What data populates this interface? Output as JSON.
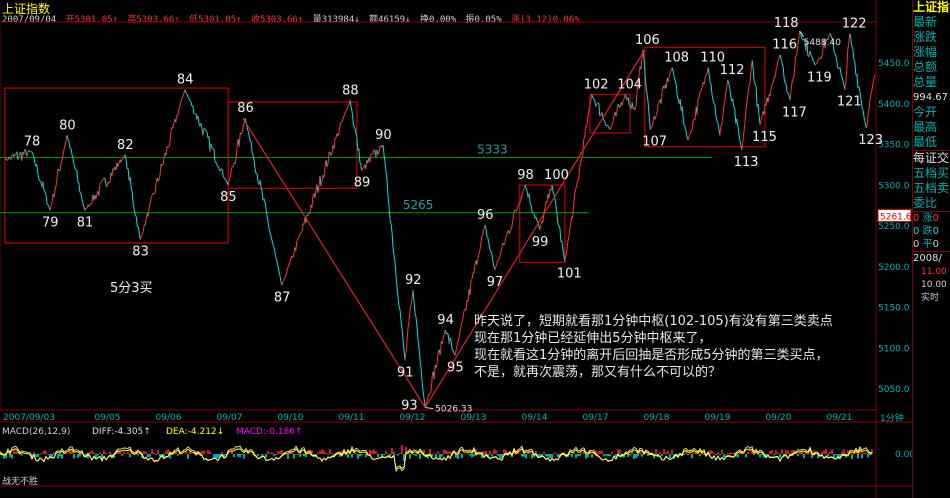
{
  "header": {
    "title": "上证指数",
    "date": "2007/09/04",
    "open": "开5301.05↑",
    "high": "高5303.66↑",
    "low": "低5301.05↑",
    "close": "收5303.66↑",
    "volume": "量313984↓",
    "amount": "额46159↓",
    "turnover": "换0.00%",
    "amplitude": "振0.05%",
    "change": "涨(3.12)0.06%"
  },
  "side_panel": {
    "title": "上证指",
    "labels": [
      "最新",
      "涨跌",
      "涨幅",
      "总额",
      "总量"
    ],
    "total_volume": "994.67",
    "labels2": [
      "今开",
      "最高",
      "最低"
    ],
    "exchange": "每证交",
    "labels3": [
      "五档买",
      "五档卖",
      "委比"
    ],
    "stats": [
      [
        "0",
        "涨",
        "0"
      ],
      [
        "0",
        "跌",
        "0"
      ],
      [
        "0",
        "平",
        "0"
      ]
    ],
    "date": "2008/",
    "v1": "11.00",
    "v2": "10.00",
    "realtime": "实时"
  },
  "period": "1分钟",
  "macd": {
    "label": "MACD(26,12,9)",
    "diff": "DIFF:-4.305↑",
    "dea": "DEA:-4.212↓",
    "macd": "MACD:-0.186↑",
    "zero": "0.00"
  },
  "footer": "战无不胜",
  "annotation": [
    "昨天说了，短期就看那1分钟中枢(102-105)有没有第三类卖点",
    "现在那1分钟已经延伸出5分钟中枢来了，",
    "现在就看这1分钟的离开后回抽是否形成5分钟的第三类买点，",
    "不是，就再次震荡，那又有什么不可以的？"
  ],
  "chart_data": {
    "type": "line",
    "title": "上证指数",
    "ylim": [
      5020,
      5495
    ],
    "y_ticks": [
      "5050.0",
      "5100.0",
      "5150.0",
      "5200.0",
      "5250.0",
      "5300.0",
      "5350.0",
      "5400.0",
      "5450.0"
    ],
    "x_ticks": [
      {
        "t": 0.05,
        "label": "2007/09/03"
      },
      {
        "t": 1.55,
        "label": "09/05"
      },
      {
        "t": 2.55,
        "label": "09/06"
      },
      {
        "t": 3.55,
        "label": "09/07"
      },
      {
        "t": 4.55,
        "label": "09/10"
      },
      {
        "t": 5.55,
        "label": "09/11"
      },
      {
        "t": 6.55,
        "label": "09/12"
      },
      {
        "t": 7.55,
        "label": "09/13"
      },
      {
        "t": 8.55,
        "label": "09/14"
      },
      {
        "t": 9.55,
        "label": "09/17"
      },
      {
        "t": 10.55,
        "label": "09/18"
      },
      {
        "t": 11.55,
        "label": "09/19"
      },
      {
        "t": 12.55,
        "label": "09/20"
      },
      {
        "t": 13.55,
        "label": "09/21"
      }
    ],
    "x_unit": "trading days from chart start",
    "pivots": [
      {
        "t": 0.08,
        "p": 5330,
        "label": ""
      },
      {
        "t": 0.52,
        "p": 5340,
        "label": "78"
      },
      {
        "t": 0.82,
        "p": 5268,
        "label": "79"
      },
      {
        "t": 1.1,
        "p": 5360,
        "label": "80"
      },
      {
        "t": 1.39,
        "p": 5268,
        "label": "81"
      },
      {
        "t": 2.05,
        "p": 5336,
        "label": "82"
      },
      {
        "t": 2.3,
        "p": 5232,
        "label": "83"
      },
      {
        "t": 3.03,
        "p": 5416,
        "label": "84"
      },
      {
        "t": 3.74,
        "p": 5299,
        "label": "85"
      },
      {
        "t": 4.02,
        "p": 5381,
        "label": "86"
      },
      {
        "t": 4.62,
        "p": 5176,
        "label": "87"
      },
      {
        "t": 5.74,
        "p": 5403,
        "label": "88"
      },
      {
        "t": 5.93,
        "p": 5317,
        "label": "89"
      },
      {
        "t": 6.28,
        "p": 5348,
        "label": "90"
      },
      {
        "t": 6.64,
        "p": 5084,
        "label": "91"
      },
      {
        "t": 6.77,
        "p": 5170,
        "label": "92"
      },
      {
        "t": 6.97,
        "p": 5026,
        "label": "93"
      },
      {
        "t": 7.3,
        "p": 5121,
        "label": "94"
      },
      {
        "t": 7.46,
        "p": 5090,
        "label": "95"
      },
      {
        "t": 7.95,
        "p": 5250,
        "label": "96"
      },
      {
        "t": 8.11,
        "p": 5195,
        "label": "97"
      },
      {
        "t": 8.61,
        "p": 5299,
        "label": "98"
      },
      {
        "t": 8.85,
        "p": 5244,
        "label": "99"
      },
      {
        "t": 9.05,
        "p": 5299,
        "label": "100"
      },
      {
        "t": 9.26,
        "p": 5205,
        "label": "101"
      },
      {
        "t": 9.7,
        "p": 5410,
        "label": "102"
      },
      {
        "t": 10.0,
        "p": 5367,
        "label": ""
      },
      {
        "t": 10.25,
        "p": 5410,
        "label": "104"
      },
      {
        "t": 10.41,
        "p": 5391,
        "label": ""
      },
      {
        "t": 10.54,
        "p": 5465,
        "label": "106"
      },
      {
        "t": 10.66,
        "p": 5367,
        "label": "107"
      },
      {
        "t": 11.02,
        "p": 5443,
        "label": "108"
      },
      {
        "t": 11.28,
        "p": 5354,
        "label": ""
      },
      {
        "t": 11.61,
        "p": 5443,
        "label": "110"
      },
      {
        "t": 11.8,
        "p": 5360,
        "label": ""
      },
      {
        "t": 11.93,
        "p": 5428,
        "label": "112"
      },
      {
        "t": 12.16,
        "p": 5342,
        "label": "113"
      },
      {
        "t": 12.33,
        "p": 5452,
        "label": ""
      },
      {
        "t": 12.46,
        "p": 5373,
        "label": "115"
      },
      {
        "t": 12.79,
        "p": 5459,
        "label": "116"
      },
      {
        "t": 12.95,
        "p": 5403,
        "label": "117"
      },
      {
        "t": 13.11,
        "p": 5488,
        "label": "118"
      },
      {
        "t": 13.36,
        "p": 5446,
        "label": "119"
      },
      {
        "t": 13.61,
        "p": 5485,
        "label": ""
      },
      {
        "t": 13.85,
        "p": 5416,
        "label": "121"
      },
      {
        "t": 13.93,
        "p": 5485,
        "label": "122"
      },
      {
        "t": 14.2,
        "p": 5369,
        "label": "123"
      },
      {
        "t": 14.34,
        "p": 5434,
        "label": ""
      }
    ],
    "extremes": {
      "high": "5488.40",
      "low": "5026.33"
    },
    "last_price_tag": "5261.6",
    "hlines": [
      {
        "p": 5333,
        "label": "5333",
        "t_end": 11.67
      },
      {
        "p": 5265,
        "label": "5265",
        "t_end": 9.64
      }
    ],
    "boxes": [
      {
        "t0": 0.08,
        "t1": 3.74,
        "p0": 5228,
        "p1": 5418
      },
      {
        "t0": 3.74,
        "t1": 5.85,
        "p0": 5295,
        "p1": 5401
      },
      {
        "t0": 10.57,
        "t1": 12.54,
        "p0": 5346,
        "p1": 5468
      },
      {
        "t0": 9.67,
        "t1": 10.33,
        "p0": 5363,
        "p1": 5410
      },
      {
        "t0": 8.52,
        "t1": 9.26,
        "p0": 5204,
        "p1": 5299
      }
    ],
    "trend_lines": [
      {
        "t0": 3.98,
        "p0": 5381,
        "t1": 6.97,
        "p1": 5026
      },
      {
        "t0": 6.97,
        "p0": 5026,
        "t1": 10.57,
        "p1": 5465
      }
    ],
    "box_note": "5分3买",
    "colors": {
      "up": "#ff3030",
      "down": "#00e0e0",
      "box": "#c00000",
      "hline": "#00a000",
      "axis": "#00b0b0",
      "macd_diff": "#ffffff",
      "macd_dea": "#ffff00"
    }
  }
}
